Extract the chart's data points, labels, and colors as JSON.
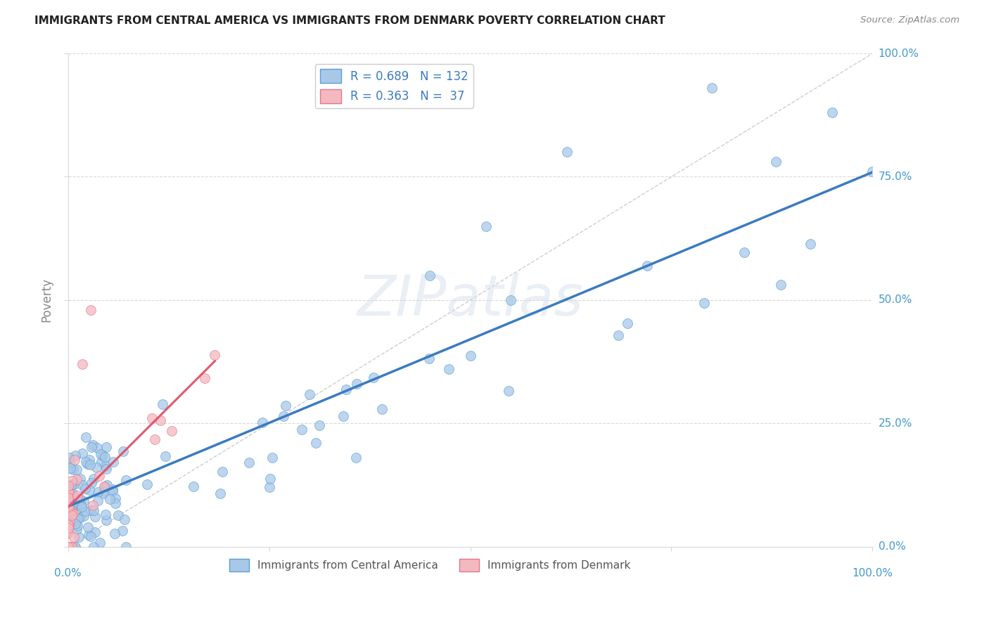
{
  "title": "IMMIGRANTS FROM CENTRAL AMERICA VS IMMIGRANTS FROM DENMARK POVERTY CORRELATION CHART",
  "source": "Source: ZipAtlas.com",
  "ylabel": "Poverty",
  "blue_color": "#a8c8e8",
  "blue_edge_color": "#5a9fd4",
  "blue_line_color": "#3a7bbf",
  "pink_color": "#f4b8c0",
  "pink_edge_color": "#e07888",
  "pink_line_color": "#e05870",
  "diag_color": "#c8c8c8",
  "grid_color": "#d8d8d8",
  "watermark_color": "#d0dce8",
  "tick_label_color": "#4499cc",
  "ylabel_color": "#888888",
  "title_color": "#222222",
  "source_color": "#888888",
  "legend_label_color": "#3a7bbf",
  "bottom_legend_color": "#555555",
  "legend_blue_R": "0.689",
  "legend_blue_N": "132",
  "legend_pink_R": "0.363",
  "legend_pink_N": " 37",
  "legend_bottom_blue": "Immigrants from Central America",
  "legend_bottom_pink": "Immigrants from Denmark",
  "watermark": "ZIPatlas",
  "blue_intercept": 0.09,
  "blue_slope": 0.55,
  "pink_intercept": 0.05,
  "pink_slope": 1.4,
  "diag_slope": 1.0,
  "diag_intercept": 0.0
}
